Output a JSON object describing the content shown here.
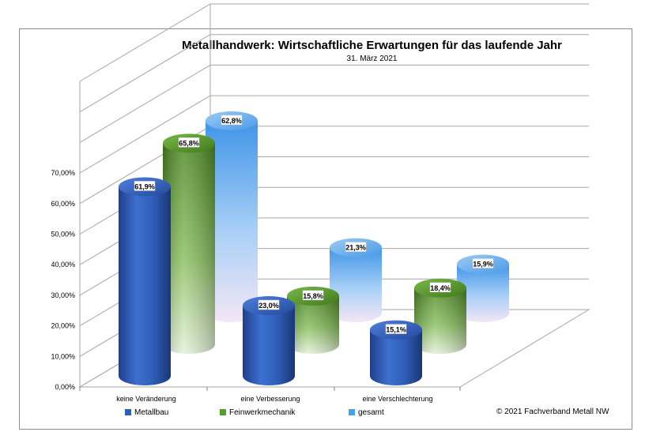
{
  "chart_data": {
    "type": "bar",
    "title": "Metallhandwerk: Wirtschaftliche Erwartungen für das laufende Jahr",
    "subtitle": "31. März 2021",
    "categories": [
      "keine Veränderung",
      "eine Verbesserung",
      "eine Verschlechterung"
    ],
    "series": [
      {
        "name": "Metallbau",
        "values": [
          61.9,
          23.0,
          15.1
        ],
        "labels": [
          "61,9%",
          "23,0%",
          "15,1%"
        ],
        "color": "#2f5fb8"
      },
      {
        "name": "Feinwerkmechanik",
        "values": [
          65.8,
          15.8,
          18.4
        ],
        "labels": [
          "65,8%",
          "15,8%",
          "18,4%"
        ],
        "color": "#5a9a2e"
      },
      {
        "name": "gesamt",
        "values": [
          62.8,
          21.3,
          15.9
        ],
        "labels": [
          "62,8%",
          "21,3%",
          "15,9%"
        ],
        "color": "#4aa0e8"
      }
    ],
    "y_ticks": [
      "0,00%",
      "10,00%",
      "20,00%",
      "30,00%",
      "40,00%",
      "50,00%",
      "60,00%",
      "70,00%"
    ],
    "ylim": [
      0,
      100
    ],
    "grid": true,
    "legend_position": "bottom",
    "style": "3d-cylinder"
  },
  "copyright": "© 2021 Fachverband Metall NW"
}
